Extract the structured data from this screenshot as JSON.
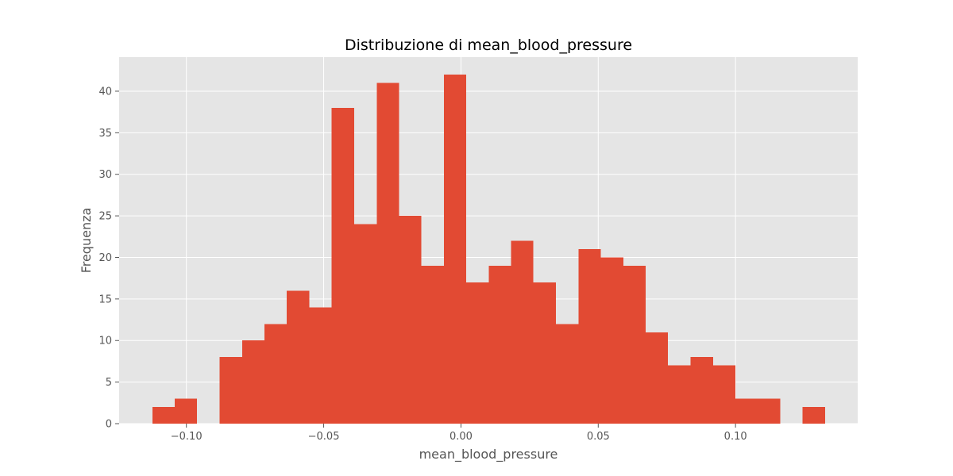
{
  "chart_data": {
    "type": "bar",
    "title": "Distribuzione di mean_blood_pressure",
    "xlabel": "mean_blood_pressure",
    "ylabel": "Frequenza",
    "xlim": [
      -0.1245,
      0.1445
    ],
    "ylim": [
      0,
      44.1
    ],
    "xticks": [
      -0.1,
      -0.05,
      0.0,
      0.05,
      0.1
    ],
    "xtick_labels": [
      "−0.10",
      "−0.05",
      "0.00",
      "0.05",
      "0.10"
    ],
    "yticks": [
      0,
      5,
      10,
      15,
      20,
      25,
      30,
      35,
      40
    ],
    "ytick_labels": [
      "0",
      "5",
      "10",
      "15",
      "20",
      "25",
      "30",
      "35",
      "40"
    ],
    "grid": true,
    "bins": [
      {
        "x0": -0.1124,
        "x1": -0.1042,
        "count": 2
      },
      {
        "x0": -0.1042,
        "x1": -0.0961,
        "count": 3
      },
      {
        "x0": -0.0961,
        "x1": -0.0879,
        "count": 0
      },
      {
        "x0": -0.0879,
        "x1": -0.0797,
        "count": 8
      },
      {
        "x0": -0.0797,
        "x1": -0.0716,
        "count": 10
      },
      {
        "x0": -0.0716,
        "x1": -0.0634,
        "count": 12
      },
      {
        "x0": -0.0634,
        "x1": -0.0552,
        "count": 16
      },
      {
        "x0": -0.0552,
        "x1": -0.0471,
        "count": 14
      },
      {
        "x0": -0.0471,
        "x1": -0.0389,
        "count": 38
      },
      {
        "x0": -0.0389,
        "x1": -0.0307,
        "count": 24
      },
      {
        "x0": -0.0307,
        "x1": -0.0226,
        "count": 41
      },
      {
        "x0": -0.0226,
        "x1": -0.0144,
        "count": 25
      },
      {
        "x0": -0.0144,
        "x1": -0.0062,
        "count": 19
      },
      {
        "x0": -0.0062,
        "x1": 0.0019,
        "count": 42
      },
      {
        "x0": 0.0019,
        "x1": 0.0101,
        "count": 17
      },
      {
        "x0": 0.0101,
        "x1": 0.0183,
        "count": 19
      },
      {
        "x0": 0.0183,
        "x1": 0.0264,
        "count": 22
      },
      {
        "x0": 0.0264,
        "x1": 0.0346,
        "count": 17
      },
      {
        "x0": 0.0346,
        "x1": 0.0428,
        "count": 12
      },
      {
        "x0": 0.0428,
        "x1": 0.0509,
        "count": 21
      },
      {
        "x0": 0.0509,
        "x1": 0.0591,
        "count": 20
      },
      {
        "x0": 0.0591,
        "x1": 0.0673,
        "count": 19
      },
      {
        "x0": 0.0673,
        "x1": 0.0754,
        "count": 11
      },
      {
        "x0": 0.0754,
        "x1": 0.0836,
        "count": 7
      },
      {
        "x0": 0.0836,
        "x1": 0.0918,
        "count": 8
      },
      {
        "x0": 0.0918,
        "x1": 0.0999,
        "count": 7
      },
      {
        "x0": 0.0999,
        "x1": 0.1081,
        "count": 3
      },
      {
        "x0": 0.1081,
        "x1": 0.1163,
        "count": 3
      },
      {
        "x0": 0.1163,
        "x1": 0.1244,
        "count": 0
      },
      {
        "x0": 0.1244,
        "x1": 0.1326,
        "count": 2
      }
    ],
    "colors": {
      "bar": "#e24a33",
      "plot_background": "#e5e5e5",
      "grid": "#ffffff",
      "tick": "#555555"
    }
  }
}
